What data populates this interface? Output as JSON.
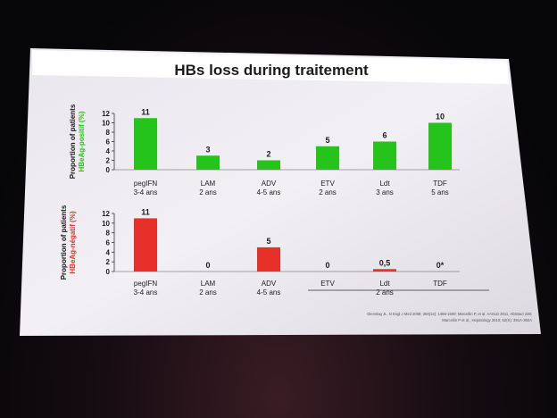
{
  "slide": {
    "title": "HBs loss during traitement",
    "reference": [
      "Dienstag JL. N Engl J Med 2008; 359(14): 1486-1500; Marcellin P, et al. AASLD 2011, Abstract 238;",
      "Marcellin P et al., Hepatology 2010; 52(S): 391A-392A"
    ]
  },
  "chart_data": [
    {
      "type": "bar",
      "ylabel_line1": "Proportion of patients",
      "ylabel_line2": "HBeAg-positif (%)",
      "ylim": [
        0,
        12
      ],
      "yticks": [
        0,
        2,
        4,
        6,
        8,
        10,
        12
      ],
      "color": "#25c41b",
      "categories": [
        [
          "pegIFN",
          "3-4 ans"
        ],
        [
          "LAM",
          "2 ans"
        ],
        [
          "ADV",
          "4-5 ans"
        ],
        [
          "ETV",
          "2 ans"
        ],
        [
          "Ldt",
          "3 ans"
        ],
        [
          "TDF",
          "5 ans"
        ]
      ],
      "values": [
        11,
        3,
        2,
        5,
        6,
        10
      ],
      "labels": [
        "11",
        "3",
        "2",
        "5",
        "6",
        "10"
      ]
    },
    {
      "type": "bar",
      "ylabel_line1": "Proportion of patients",
      "ylabel_line2": "HBeAg-négatif (%)",
      "ylim": [
        0,
        12
      ],
      "yticks": [
        0,
        2,
        4,
        6,
        8,
        10,
        12
      ],
      "color": "#e8302a",
      "categories": [
        [
          "pegIFN",
          "3-4 ans"
        ],
        [
          "LAM",
          "2 ans"
        ],
        [
          "ADV",
          "4-5 ans"
        ],
        [
          "ETV",
          ""
        ],
        [
          "Ldt",
          "2 ans"
        ],
        [
          "TDF",
          ""
        ]
      ],
      "values": [
        11,
        0,
        5,
        0,
        0.5,
        0
      ],
      "labels": [
        "11",
        "0",
        "5",
        "0",
        "0,5",
        "0*"
      ]
    }
  ]
}
